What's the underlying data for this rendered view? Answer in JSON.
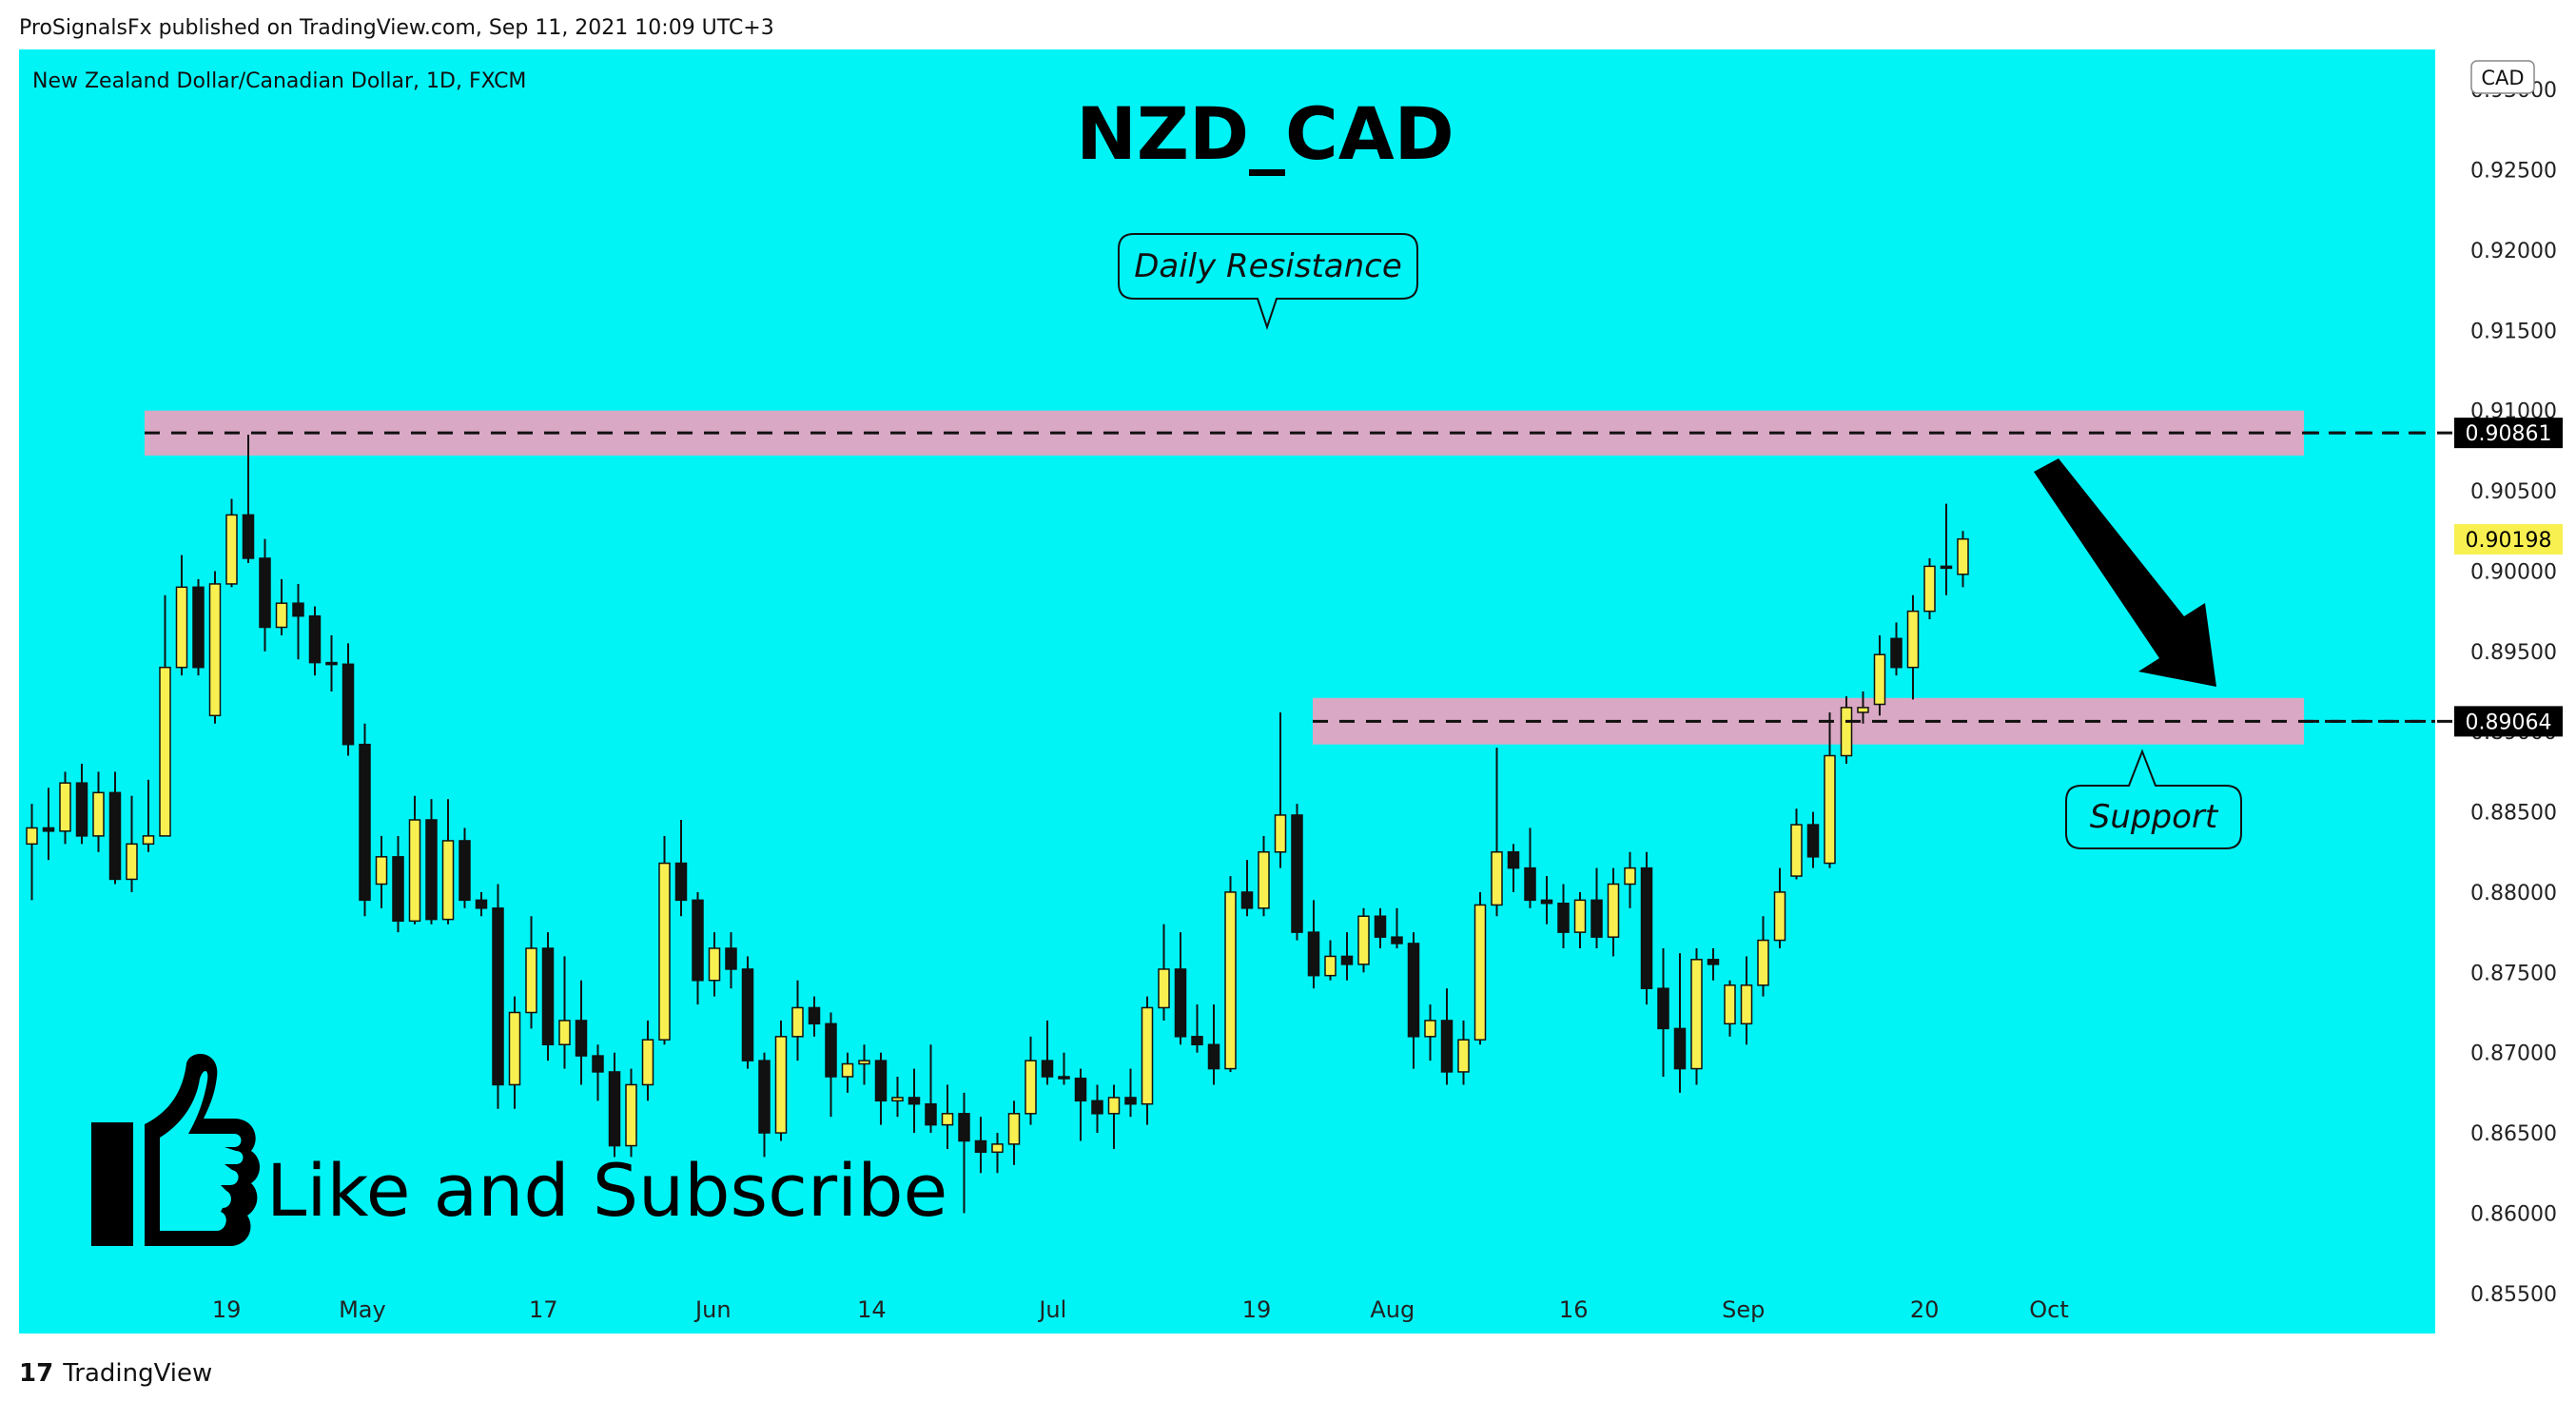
{
  "header": {
    "published_line": "ProSignalsFx published on TradingView.com, Sep 11, 2021 10:09 UTC+3"
  },
  "chart_panel": {
    "symbol_line": "New Zealand Dollar/Canadian Dollar, 1D, FXCM",
    "big_title": "NZD_CAD",
    "currency_badge": "CAD",
    "background_color": "#00f4f6",
    "bull_color": "#f8f050",
    "bear_color": "#111111",
    "zone_color": "#d9a8c4",
    "resistance_callout": "Daily Resistance",
    "support_callout": "Support",
    "promo_text": "Like and Subscribe",
    "promo_icon": "thumbs-up-icon",
    "arrow_icon": "down-arrow-icon"
  },
  "chart_data": {
    "type": "candlestick",
    "ylim": [
      0.8525,
      0.9325
    ],
    "y_ticks": [
      "0.93000",
      "0.92500",
      "0.92000",
      "0.91500",
      "0.91000",
      "0.90500",
      "0.90000",
      "0.89500",
      "0.89000",
      "0.88500",
      "0.88000",
      "0.87500",
      "0.87000",
      "0.86500",
      "0.86000",
      "0.85500"
    ],
    "y_tick_values": [
      0.93,
      0.925,
      0.92,
      0.915,
      0.91,
      0.905,
      0.9,
      0.895,
      0.89,
      0.885,
      0.88,
      0.875,
      0.87,
      0.865,
      0.86,
      0.855
    ],
    "x_ticks": [
      "19",
      "May",
      "17",
      "Jun",
      "14",
      "Jul",
      "19",
      "Aug",
      "16",
      "Sep",
      "20",
      "Oct"
    ],
    "x_tick_days": [
      19,
      31,
      47,
      62,
      76,
      92,
      110,
      122,
      138,
      153,
      169,
      180
    ],
    "resistance_level": {
      "label": "0.90861",
      "value": 0.90861,
      "zone": [
        0.9072,
        0.91
      ]
    },
    "support_level": {
      "label": "0.89064",
      "value": 0.89064,
      "zone": [
        0.8892,
        0.8921
      ]
    },
    "last_price": {
      "label": "0.90198",
      "value": 0.90198
    },
    "candles": [
      {
        "o": 0.883,
        "h": 0.8855,
        "l": 0.8795,
        "c": 0.884
      },
      {
        "o": 0.884,
        "h": 0.8865,
        "l": 0.882,
        "c": 0.8838
      },
      {
        "o": 0.8838,
        "h": 0.8875,
        "l": 0.883,
        "c": 0.8868
      },
      {
        "o": 0.8868,
        "h": 0.888,
        "l": 0.883,
        "c": 0.8835
      },
      {
        "o": 0.8835,
        "h": 0.8875,
        "l": 0.8825,
        "c": 0.8862
      },
      {
        "o": 0.8862,
        "h": 0.8875,
        "l": 0.8805,
        "c": 0.8808
      },
      {
        "o": 0.8808,
        "h": 0.886,
        "l": 0.88,
        "c": 0.883
      },
      {
        "o": 0.883,
        "h": 0.887,
        "l": 0.8825,
        "c": 0.8835
      },
      {
        "o": 0.8835,
        "h": 0.8985,
        "l": 0.8835,
        "c": 0.894
      },
      {
        "o": 0.894,
        "h": 0.901,
        "l": 0.8935,
        "c": 0.899
      },
      {
        "o": 0.899,
        "h": 0.8995,
        "l": 0.8935,
        "c": 0.894
      },
      {
        "o": 0.891,
        "h": 0.9,
        "l": 0.8905,
        "c": 0.8992
      },
      {
        "o": 0.8992,
        "h": 0.9045,
        "l": 0.899,
        "c": 0.9035
      },
      {
        "o": 0.9035,
        "h": 0.9085,
        "l": 0.9005,
        "c": 0.9008
      },
      {
        "o": 0.9008,
        "h": 0.902,
        "l": 0.895,
        "c": 0.8965
      },
      {
        "o": 0.8965,
        "h": 0.8995,
        "l": 0.896,
        "c": 0.898
      },
      {
        "o": 0.898,
        "h": 0.8992,
        "l": 0.8945,
        "c": 0.8972
      },
      {
        "o": 0.8972,
        "h": 0.8978,
        "l": 0.8935,
        "c": 0.8943
      },
      {
        "o": 0.8943,
        "h": 0.896,
        "l": 0.8925,
        "c": 0.8942
      },
      {
        "o": 0.8942,
        "h": 0.8955,
        "l": 0.8885,
        "c": 0.8892
      },
      {
        "o": 0.8892,
        "h": 0.8905,
        "l": 0.8785,
        "c": 0.8795
      },
      {
        "o": 0.8805,
        "h": 0.8835,
        "l": 0.879,
        "c": 0.8822
      },
      {
        "o": 0.8822,
        "h": 0.8835,
        "l": 0.8775,
        "c": 0.8782
      },
      {
        "o": 0.8782,
        "h": 0.886,
        "l": 0.878,
        "c": 0.8845
      },
      {
        "o": 0.8845,
        "h": 0.8858,
        "l": 0.878,
        "c": 0.8783
      },
      {
        "o": 0.8783,
        "h": 0.8858,
        "l": 0.878,
        "c": 0.8832
      },
      {
        "o": 0.8832,
        "h": 0.884,
        "l": 0.879,
        "c": 0.8795
      },
      {
        "o": 0.8795,
        "h": 0.88,
        "l": 0.8785,
        "c": 0.879
      },
      {
        "o": 0.879,
        "h": 0.8805,
        "l": 0.8665,
        "c": 0.868
      },
      {
        "o": 0.868,
        "h": 0.8735,
        "l": 0.8665,
        "c": 0.8725
      },
      {
        "o": 0.8725,
        "h": 0.8785,
        "l": 0.8715,
        "c": 0.8765
      },
      {
        "o": 0.8765,
        "h": 0.8775,
        "l": 0.8695,
        "c": 0.8705
      },
      {
        "o": 0.8705,
        "h": 0.876,
        "l": 0.869,
        "c": 0.872
      },
      {
        "o": 0.872,
        "h": 0.8745,
        "l": 0.868,
        "c": 0.8698
      },
      {
        "o": 0.8698,
        "h": 0.8705,
        "l": 0.867,
        "c": 0.8688
      },
      {
        "o": 0.8688,
        "h": 0.87,
        "l": 0.8635,
        "c": 0.8642
      },
      {
        "o": 0.8642,
        "h": 0.869,
        "l": 0.8635,
        "c": 0.868
      },
      {
        "o": 0.868,
        "h": 0.872,
        "l": 0.867,
        "c": 0.8708
      },
      {
        "o": 0.8708,
        "h": 0.8835,
        "l": 0.8705,
        "c": 0.8818
      },
      {
        "o": 0.8818,
        "h": 0.8845,
        "l": 0.8785,
        "c": 0.8795
      },
      {
        "o": 0.8795,
        "h": 0.88,
        "l": 0.873,
        "c": 0.8745
      },
      {
        "o": 0.8745,
        "h": 0.8775,
        "l": 0.8735,
        "c": 0.8765
      },
      {
        "o": 0.8765,
        "h": 0.8775,
        "l": 0.874,
        "c": 0.8752
      },
      {
        "o": 0.8752,
        "h": 0.876,
        "l": 0.869,
        "c": 0.8695
      },
      {
        "o": 0.8695,
        "h": 0.87,
        "l": 0.8635,
        "c": 0.865
      },
      {
        "o": 0.865,
        "h": 0.872,
        "l": 0.8645,
        "c": 0.871
      },
      {
        "o": 0.871,
        "h": 0.8745,
        "l": 0.8695,
        "c": 0.8728
      },
      {
        "o": 0.8728,
        "h": 0.8735,
        "l": 0.871,
        "c": 0.8718
      },
      {
        "o": 0.8718,
        "h": 0.8725,
        "l": 0.866,
        "c": 0.8685
      },
      {
        "o": 0.8685,
        "h": 0.87,
        "l": 0.8675,
        "c": 0.8693
      },
      {
        "o": 0.8693,
        "h": 0.8705,
        "l": 0.868,
        "c": 0.8695
      },
      {
        "o": 0.8695,
        "h": 0.87,
        "l": 0.8655,
        "c": 0.867
      },
      {
        "o": 0.867,
        "h": 0.8685,
        "l": 0.866,
        "c": 0.8672
      },
      {
        "o": 0.8672,
        "h": 0.869,
        "l": 0.865,
        "c": 0.8668
      },
      {
        "o": 0.8668,
        "h": 0.8705,
        "l": 0.865,
        "c": 0.8655
      },
      {
        "o": 0.8655,
        "h": 0.868,
        "l": 0.864,
        "c": 0.8662
      },
      {
        "o": 0.8662,
        "h": 0.8675,
        "l": 0.86,
        "c": 0.8645
      },
      {
        "o": 0.8645,
        "h": 0.866,
        "l": 0.8625,
        "c": 0.8638
      },
      {
        "o": 0.8638,
        "h": 0.865,
        "l": 0.8625,
        "c": 0.8643
      },
      {
        "o": 0.8643,
        "h": 0.867,
        "l": 0.863,
        "c": 0.8662
      },
      {
        "o": 0.8662,
        "h": 0.871,
        "l": 0.8655,
        "c": 0.8695
      },
      {
        "o": 0.8695,
        "h": 0.872,
        "l": 0.868,
        "c": 0.8685
      },
      {
        "o": 0.8685,
        "h": 0.87,
        "l": 0.868,
        "c": 0.8684
      },
      {
        "o": 0.8684,
        "h": 0.869,
        "l": 0.8645,
        "c": 0.867
      },
      {
        "o": 0.867,
        "h": 0.868,
        "l": 0.865,
        "c": 0.8662
      },
      {
        "o": 0.8662,
        "h": 0.868,
        "l": 0.864,
        "c": 0.8672
      },
      {
        "o": 0.8672,
        "h": 0.869,
        "l": 0.866,
        "c": 0.8668
      },
      {
        "o": 0.8668,
        "h": 0.8735,
        "l": 0.8655,
        "c": 0.8728
      },
      {
        "o": 0.8728,
        "h": 0.878,
        "l": 0.872,
        "c": 0.8752
      },
      {
        "o": 0.8752,
        "h": 0.8775,
        "l": 0.8705,
        "c": 0.871
      },
      {
        "o": 0.871,
        "h": 0.873,
        "l": 0.87,
        "c": 0.8705
      },
      {
        "o": 0.8705,
        "h": 0.873,
        "l": 0.868,
        "c": 0.869
      },
      {
        "o": 0.869,
        "h": 0.881,
        "l": 0.8688,
        "c": 0.88
      },
      {
        "o": 0.88,
        "h": 0.882,
        "l": 0.8785,
        "c": 0.879
      },
      {
        "o": 0.879,
        "h": 0.8835,
        "l": 0.8785,
        "c": 0.8825
      },
      {
        "o": 0.8825,
        "h": 0.8912,
        "l": 0.8815,
        "c": 0.8848
      },
      {
        "o": 0.8848,
        "h": 0.8855,
        "l": 0.877,
        "c": 0.8775
      },
      {
        "o": 0.8775,
        "h": 0.8795,
        "l": 0.874,
        "c": 0.8748
      },
      {
        "o": 0.8748,
        "h": 0.877,
        "l": 0.8745,
        "c": 0.876
      },
      {
        "o": 0.876,
        "h": 0.8775,
        "l": 0.8745,
        "c": 0.8755
      },
      {
        "o": 0.8755,
        "h": 0.879,
        "l": 0.875,
        "c": 0.8785
      },
      {
        "o": 0.8785,
        "h": 0.879,
        "l": 0.8765,
        "c": 0.8772
      },
      {
        "o": 0.8772,
        "h": 0.879,
        "l": 0.8765,
        "c": 0.8768
      },
      {
        "o": 0.8768,
        "h": 0.8775,
        "l": 0.869,
        "c": 0.871
      },
      {
        "o": 0.871,
        "h": 0.873,
        "l": 0.8695,
        "c": 0.872
      },
      {
        "o": 0.872,
        "h": 0.874,
        "l": 0.868,
        "c": 0.8688
      },
      {
        "o": 0.8688,
        "h": 0.872,
        "l": 0.868,
        "c": 0.8708
      },
      {
        "o": 0.8708,
        "h": 0.88,
        "l": 0.8705,
        "c": 0.8792
      },
      {
        "o": 0.8792,
        "h": 0.889,
        "l": 0.8785,
        "c": 0.8825
      },
      {
        "o": 0.8825,
        "h": 0.883,
        "l": 0.88,
        "c": 0.8815
      },
      {
        "o": 0.8815,
        "h": 0.884,
        "l": 0.879,
        "c": 0.8795
      },
      {
        "o": 0.8795,
        "h": 0.881,
        "l": 0.878,
        "c": 0.8793
      },
      {
        "o": 0.8793,
        "h": 0.8805,
        "l": 0.8765,
        "c": 0.8775
      },
      {
        "o": 0.8775,
        "h": 0.88,
        "l": 0.8765,
        "c": 0.8795
      },
      {
        "o": 0.8795,
        "h": 0.8815,
        "l": 0.8765,
        "c": 0.8772
      },
      {
        "o": 0.8772,
        "h": 0.8815,
        "l": 0.876,
        "c": 0.8805
      },
      {
        "o": 0.8805,
        "h": 0.8825,
        "l": 0.879,
        "c": 0.8815
      },
      {
        "o": 0.8815,
        "h": 0.8825,
        "l": 0.873,
        "c": 0.874
      },
      {
        "o": 0.874,
        "h": 0.8765,
        "l": 0.8685,
        "c": 0.8715
      },
      {
        "o": 0.8715,
        "h": 0.8762,
        "l": 0.8675,
        "c": 0.869
      },
      {
        "o": 0.869,
        "h": 0.8765,
        "l": 0.868,
        "c": 0.8758
      },
      {
        "o": 0.8758,
        "h": 0.8765,
        "l": 0.8745,
        "c": 0.8755
      },
      {
        "o": 0.8718,
        "h": 0.8745,
        "l": 0.871,
        "c": 0.8742
      },
      {
        "o": 0.8718,
        "h": 0.876,
        "l": 0.8705,
        "c": 0.8742
      },
      {
        "o": 0.8742,
        "h": 0.8785,
        "l": 0.8735,
        "c": 0.877
      },
      {
        "o": 0.877,
        "h": 0.8815,
        "l": 0.8765,
        "c": 0.88
      },
      {
        "o": 0.881,
        "h": 0.8852,
        "l": 0.8808,
        "c": 0.8842
      },
      {
        "o": 0.8842,
        "h": 0.885,
        "l": 0.8815,
        "c": 0.8822
      },
      {
        "o": 0.8818,
        "h": 0.8912,
        "l": 0.8815,
        "c": 0.8885
      },
      {
        "o": 0.8885,
        "h": 0.8922,
        "l": 0.888,
        "c": 0.8915
      },
      {
        "o": 0.8912,
        "h": 0.8925,
        "l": 0.8905,
        "c": 0.8915
      },
      {
        "o": 0.8917,
        "h": 0.896,
        "l": 0.891,
        "c": 0.8948
      },
      {
        "o": 0.8958,
        "h": 0.8968,
        "l": 0.8935,
        "c": 0.894
      },
      {
        "o": 0.894,
        "h": 0.8985,
        "l": 0.892,
        "c": 0.8975
      },
      {
        "o": 0.8975,
        "h": 0.9008,
        "l": 0.897,
        "c": 0.9003
      },
      {
        "o": 0.9003,
        "h": 0.9042,
        "l": 0.8985,
        "c": 0.9002
      },
      {
        "o": 0.8998,
        "h": 0.9025,
        "l": 0.899,
        "c": 0.902
      }
    ]
  }
}
